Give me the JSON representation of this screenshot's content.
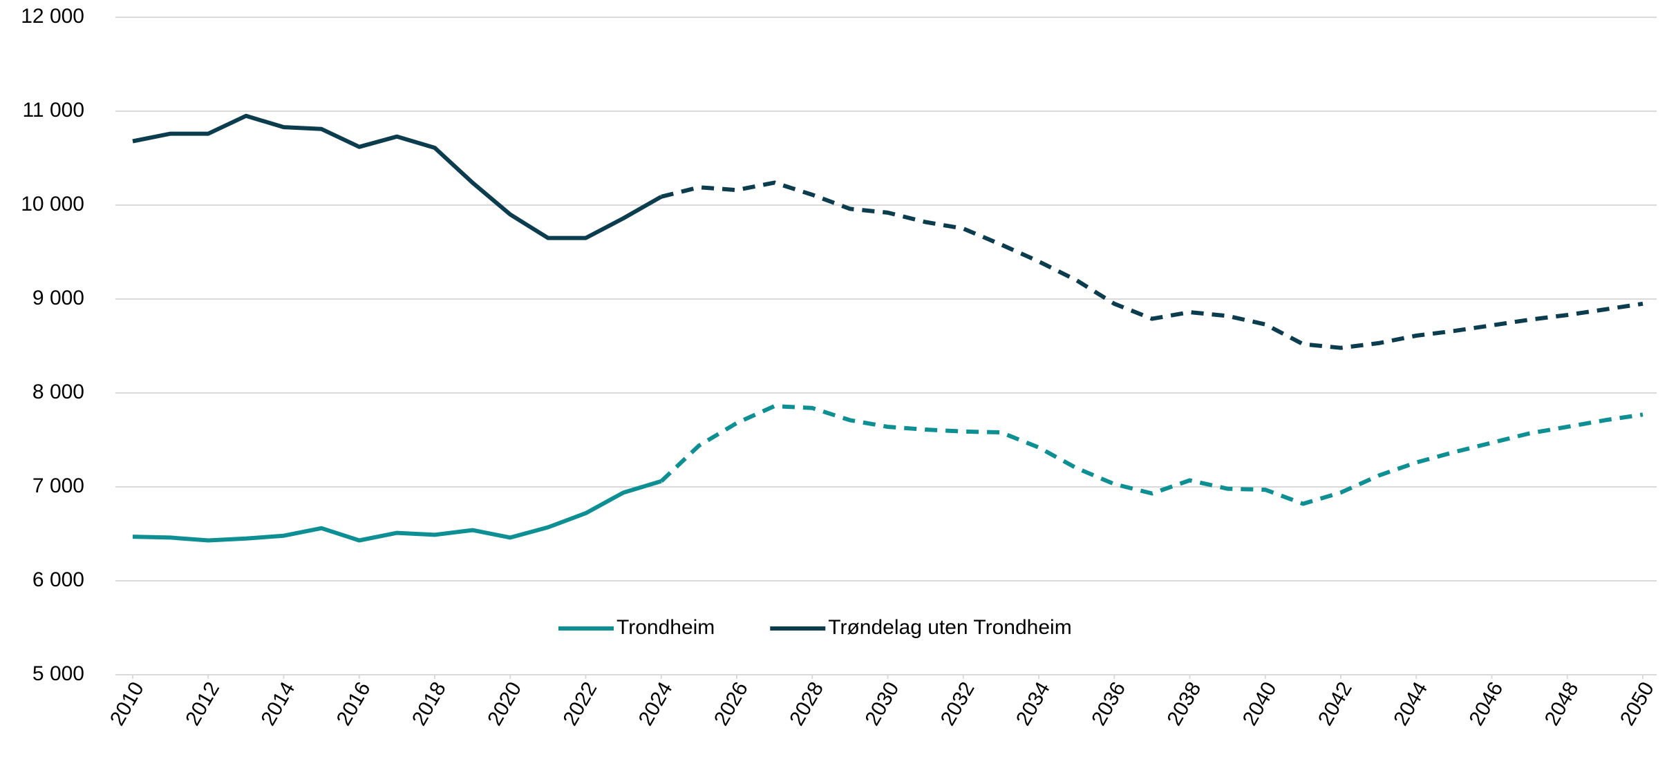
{
  "chart_data": {
    "type": "line",
    "x": [
      2010,
      2011,
      2012,
      2013,
      2014,
      2015,
      2016,
      2017,
      2018,
      2019,
      2020,
      2021,
      2022,
      2023,
      2024,
      2025,
      2026,
      2027,
      2028,
      2029,
      2030,
      2031,
      2032,
      2033,
      2034,
      2035,
      2036,
      2037,
      2038,
      2039,
      2040,
      2041,
      2042,
      2043,
      2044,
      2045,
      2046,
      2047,
      2048,
      2049,
      2050
    ],
    "series": [
      {
        "name": "Trondheim",
        "color": "#0e8f94",
        "values": [
          6470,
          6460,
          6430,
          6450,
          6480,
          6560,
          6430,
          6510,
          6490,
          6540,
          6460,
          6570,
          6720,
          6940,
          7060,
          7440,
          7680,
          7860,
          7840,
          7710,
          7640,
          7610,
          7590,
          7580,
          7420,
          7200,
          7030,
          6930,
          7070,
          6980,
          6970,
          6820,
          6940,
          7120,
          7260,
          7370,
          7470,
          7570,
          7640,
          7710,
          7770
        ]
      },
      {
        "name": "Trøndelag uten Trondheim",
        "color": "#0b3d4f",
        "values": [
          10680,
          10760,
          10760,
          10950,
          10830,
          10810,
          10620,
          10730,
          10610,
          10240,
          9900,
          9650,
          9650,
          9860,
          10090,
          10190,
          10160,
          10240,
          10110,
          9960,
          9920,
          9820,
          9750,
          9580,
          9400,
          9200,
          8950,
          8790,
          8860,
          8820,
          8730,
          8520,
          8480,
          8530,
          8610,
          8660,
          8720,
          8780,
          8830,
          8890,
          8950
        ]
      }
    ],
    "dashed_from_x": 2024,
    "xlim": [
      2010,
      2050
    ],
    "xticks": [
      2010,
      2012,
      2014,
      2016,
      2018,
      2020,
      2022,
      2024,
      2026,
      2028,
      2030,
      2032,
      2034,
      2036,
      2038,
      2040,
      2042,
      2044,
      2046,
      2048,
      2050
    ],
    "ylim": [
      5000,
      12000
    ],
    "yticks": [
      {
        "value": 5000,
        "label": "5 000"
      },
      {
        "value": 6000,
        "label": "6 000"
      },
      {
        "value": 7000,
        "label": "7 000"
      },
      {
        "value": 8000,
        "label": "8 000"
      },
      {
        "value": 9000,
        "label": "9 000"
      },
      {
        "value": 10000,
        "label": "10 000"
      },
      {
        "value": 11000,
        "label": "11 000"
      },
      {
        "value": 12000,
        "label": "12 000"
      }
    ],
    "grid": true,
    "legend": "bottom"
  }
}
